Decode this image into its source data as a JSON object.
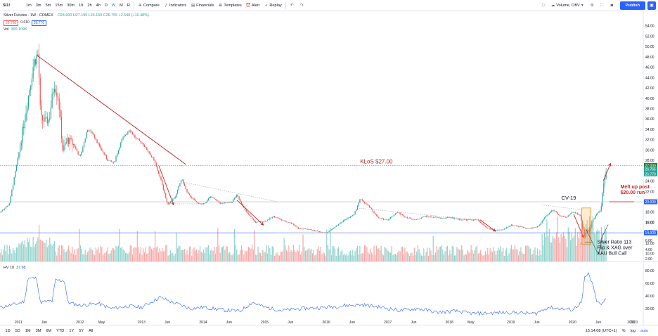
{
  "toolbar": {
    "symbol": "SI1!",
    "intervals": [
      "1m",
      "3m",
      "5m",
      "15m",
      "30m",
      "1h",
      "2h",
      "4h",
      "D",
      "W",
      "M",
      "R"
    ],
    "active_interval": "W",
    "compare_label": "Compare",
    "indicators_label": "Indicators",
    "financials_label": "Financials",
    "templates_label": "Templates",
    "alert_label": "Alert",
    "replay_label": "Replay",
    "layout_label": "Volume, OBV",
    "publish_label": "Publish"
  },
  "legend": {
    "title": "Silver Futures · 1W · COMEX",
    "ohlc": "O24.600 H27.195 L24.160 C26.755 +2.540 (+10.48%)",
    "bid": "26.760",
    "spread": "0.010",
    "ask": "26.770",
    "vol_label": "Vol",
    "vol_value": "300.109K"
  },
  "hv": {
    "label": "HV 10",
    "value": "37.98"
  },
  "bottom": {
    "ranges": [
      "1D",
      "5D",
      "1M",
      "3M",
      "6M",
      "YTD",
      "1Y",
      "5Y",
      "All"
    ],
    "clock": "15:14:08 (UTC+1)",
    "pct": "%",
    "log": "log",
    "auto": "auto"
  },
  "chart_data": {
    "type": "candlestick",
    "instrument": "Silver Futures · 1W · COMEX",
    "x_axis": {
      "range": [
        2010.7,
        2021.15
      ],
      "tick_labels": [
        {
          "x": 2011.0,
          "label": "2011"
        },
        {
          "x": 2011.42,
          "label": "Jun"
        },
        {
          "x": 2012.0,
          "label": "2012"
        },
        {
          "x": 2012.35,
          "label": "May"
        },
        {
          "x": 2013.0,
          "label": "2013"
        },
        {
          "x": 2013.42,
          "label": "Jun"
        },
        {
          "x": 2014.0,
          "label": "2014"
        },
        {
          "x": 2014.42,
          "label": "Jun"
        },
        {
          "x": 2015.0,
          "label": "2015"
        },
        {
          "x": 2015.42,
          "label": "Jun"
        },
        {
          "x": 2016.0,
          "label": "2016"
        },
        {
          "x": 2016.42,
          "label": "Jun"
        },
        {
          "x": 2017.0,
          "label": "2017"
        },
        {
          "x": 2017.42,
          "label": "Jun"
        },
        {
          "x": 2018.0,
          "label": "2018"
        },
        {
          "x": 2018.35,
          "label": "May"
        },
        {
          "x": 2019.0,
          "label": "2019"
        },
        {
          "x": 2019.42,
          "label": "Jun"
        },
        {
          "x": 2020.0,
          "label": "2020"
        },
        {
          "x": 2020.42,
          "label": "Jun"
        },
        {
          "x": 2021.0,
          "label": "2021"
        }
      ]
    },
    "price_axis": {
      "range": [
        9,
        56
      ],
      "ticks": [
        "54.00",
        "52.00",
        "50.00",
        "48.00",
        "46.00",
        "44.00",
        "42.00",
        "40.00",
        "38.00",
        "36.00",
        "34.00",
        "32.00",
        "30.00",
        "28.00",
        "26.00",
        "24.00",
        "22.00",
        "18.00",
        "16.00",
        "12.00",
        "10.00"
      ],
      "tick_values": [
        54,
        52,
        50,
        48,
        46,
        44,
        42,
        40,
        38,
        36,
        34,
        32,
        30,
        28,
        26,
        24,
        22,
        18,
        16,
        12,
        10
      ],
      "markers": [
        {
          "label": "27.000",
          "value": 27.0,
          "color": "#2e7d32"
        },
        {
          "label": "26.765",
          "value": 26.3,
          "color": "#26a69a"
        },
        {
          "label": "26.770",
          "value": 25.4,
          "color": "#26a69a"
        },
        {
          "label": "20.000",
          "value": 20.0,
          "color": "#2962ff"
        },
        {
          "label": "14.000",
          "value": 14.0,
          "color": "#2962ff"
        }
      ]
    },
    "price_anchors": [
      [
        2010.7,
        18.0
      ],
      [
        2010.85,
        19.5
      ],
      [
        2011.0,
        29.0
      ],
      [
        2011.1,
        36.0
      ],
      [
        2011.25,
        47.0
      ],
      [
        2011.32,
        48.5
      ],
      [
        2011.36,
        36.0
      ],
      [
        2011.45,
        35.5
      ],
      [
        2011.5,
        36.0
      ],
      [
        2011.58,
        43.0
      ],
      [
        2011.65,
        40.0
      ],
      [
        2011.72,
        30.0
      ],
      [
        2011.8,
        32.0
      ],
      [
        2011.9,
        31.0
      ],
      [
        2012.0,
        28.5
      ],
      [
        2012.12,
        34.0
      ],
      [
        2012.22,
        33.0
      ],
      [
        2012.3,
        31.0
      ],
      [
        2012.45,
        28.0
      ],
      [
        2012.55,
        27.5
      ],
      [
        2012.68,
        32.0
      ],
      [
        2012.8,
        34.0
      ],
      [
        2012.92,
        32.0
      ],
      [
        2013.0,
        31.5
      ],
      [
        2013.12,
        29.5
      ],
      [
        2013.2,
        28.0
      ],
      [
        2013.32,
        24.0
      ],
      [
        2013.42,
        19.5
      ],
      [
        2013.55,
        21.0
      ],
      [
        2013.65,
        24.5
      ],
      [
        2013.75,
        21.5
      ],
      [
        2013.9,
        19.8
      ],
      [
        2014.0,
        19.5
      ],
      [
        2014.12,
        21.0
      ],
      [
        2014.28,
        19.7
      ],
      [
        2014.45,
        19.8
      ],
      [
        2014.55,
        21.3
      ],
      [
        2014.7,
        18.0
      ],
      [
        2014.85,
        16.0
      ],
      [
        2015.0,
        16.2
      ],
      [
        2015.15,
        17.2
      ],
      [
        2015.3,
        16.3
      ],
      [
        2015.45,
        15.8
      ],
      [
        2015.55,
        14.8
      ],
      [
        2015.7,
        14.7
      ],
      [
        2015.85,
        14.3
      ],
      [
        2016.0,
        14.0
      ],
      [
        2016.15,
        15.2
      ],
      [
        2016.3,
        16.5
      ],
      [
        2016.45,
        17.5
      ],
      [
        2016.55,
        20.5
      ],
      [
        2016.7,
        19.0
      ],
      [
        2016.85,
        16.8
      ],
      [
        2017.0,
        16.5
      ],
      [
        2017.15,
        18.0
      ],
      [
        2017.3,
        17.0
      ],
      [
        2017.45,
        16.5
      ],
      [
        2017.6,
        17.2
      ],
      [
        2017.75,
        17.0
      ],
      [
        2017.9,
        16.8
      ],
      [
        2018.0,
        17.0
      ],
      [
        2018.15,
        16.6
      ],
      [
        2018.3,
        16.5
      ],
      [
        2018.45,
        16.5
      ],
      [
        2018.6,
        15.0
      ],
      [
        2018.72,
        14.5
      ],
      [
        2018.85,
        14.5
      ],
      [
        2019.0,
        15.5
      ],
      [
        2019.15,
        15.2
      ],
      [
        2019.3,
        14.8
      ],
      [
        2019.45,
        15.3
      ],
      [
        2019.55,
        17.0
      ],
      [
        2019.68,
        18.5
      ],
      [
        2019.8,
        17.2
      ],
      [
        2019.9,
        17.0
      ],
      [
        2020.0,
        18.0
      ],
      [
        2020.12,
        17.5
      ],
      [
        2020.2,
        13.5
      ],
      [
        2020.28,
        15.0
      ],
      [
        2020.38,
        17.5
      ],
      [
        2020.46,
        18.5
      ],
      [
        2020.52,
        24.5
      ],
      [
        2020.56,
        26.8
      ]
    ],
    "hv_anchors": [
      [
        2010.7,
        22
      ],
      [
        2011.0,
        28
      ],
      [
        2011.1,
        32
      ],
      [
        2011.15,
        68
      ],
      [
        2011.3,
        68
      ],
      [
        2011.35,
        30
      ],
      [
        2011.55,
        32
      ],
      [
        2011.6,
        65
      ],
      [
        2011.75,
        64
      ],
      [
        2011.8,
        30
      ],
      [
        2012.0,
        25
      ],
      [
        2012.3,
        28
      ],
      [
        2012.5,
        20
      ],
      [
        2012.8,
        24
      ],
      [
        2013.0,
        22
      ],
      [
        2013.3,
        38
      ],
      [
        2013.5,
        30
      ],
      [
        2013.8,
        20
      ],
      [
        2014.0,
        22
      ],
      [
        2014.3,
        18
      ],
      [
        2014.6,
        16
      ],
      [
        2014.8,
        30
      ],
      [
        2015.0,
        22
      ],
      [
        2015.3,
        17
      ],
      [
        2015.6,
        20
      ],
      [
        2016.0,
        22
      ],
      [
        2016.3,
        25
      ],
      [
        2016.6,
        26
      ],
      [
        2016.9,
        22
      ],
      [
        2017.2,
        17
      ],
      [
        2017.5,
        20
      ],
      [
        2017.8,
        14
      ],
      [
        2018.1,
        16
      ],
      [
        2018.4,
        12
      ],
      [
        2018.7,
        13
      ],
      [
        2019.0,
        14
      ],
      [
        2019.4,
        12
      ],
      [
        2019.6,
        22
      ],
      [
        2019.8,
        20
      ],
      [
        2020.0,
        18
      ],
      [
        2020.15,
        30
      ],
      [
        2020.2,
        68
      ],
      [
        2020.26,
        75
      ],
      [
        2020.32,
        60
      ],
      [
        2020.4,
        30
      ],
      [
        2020.48,
        26
      ],
      [
        2020.56,
        38
      ]
    ],
    "hv_axis": {
      "range": [
        0,
        90
      ],
      "ticks": [
        "80.00",
        "60.00",
        "40.00",
        "20.00"
      ],
      "tick_values": [
        80,
        60,
        40,
        20
      ]
    },
    "volume_axis": {
      "ticks": [
        "10.00",
        "8.00",
        "6.00",
        "4.00",
        "2.00"
      ]
    },
    "annotations": {
      "klos": {
        "text": "KLoS $27.00",
        "value": 27.0
      },
      "melt": {
        "lines": [
          "Melt up post",
          "$20.00 run"
        ]
      },
      "cv19": {
        "text": "CV-19"
      },
      "ratio": {
        "lines": [
          "Silver Ratio 113",
          "Flip & XAG over",
          "XAU Bull Call"
        ]
      }
    }
  }
}
